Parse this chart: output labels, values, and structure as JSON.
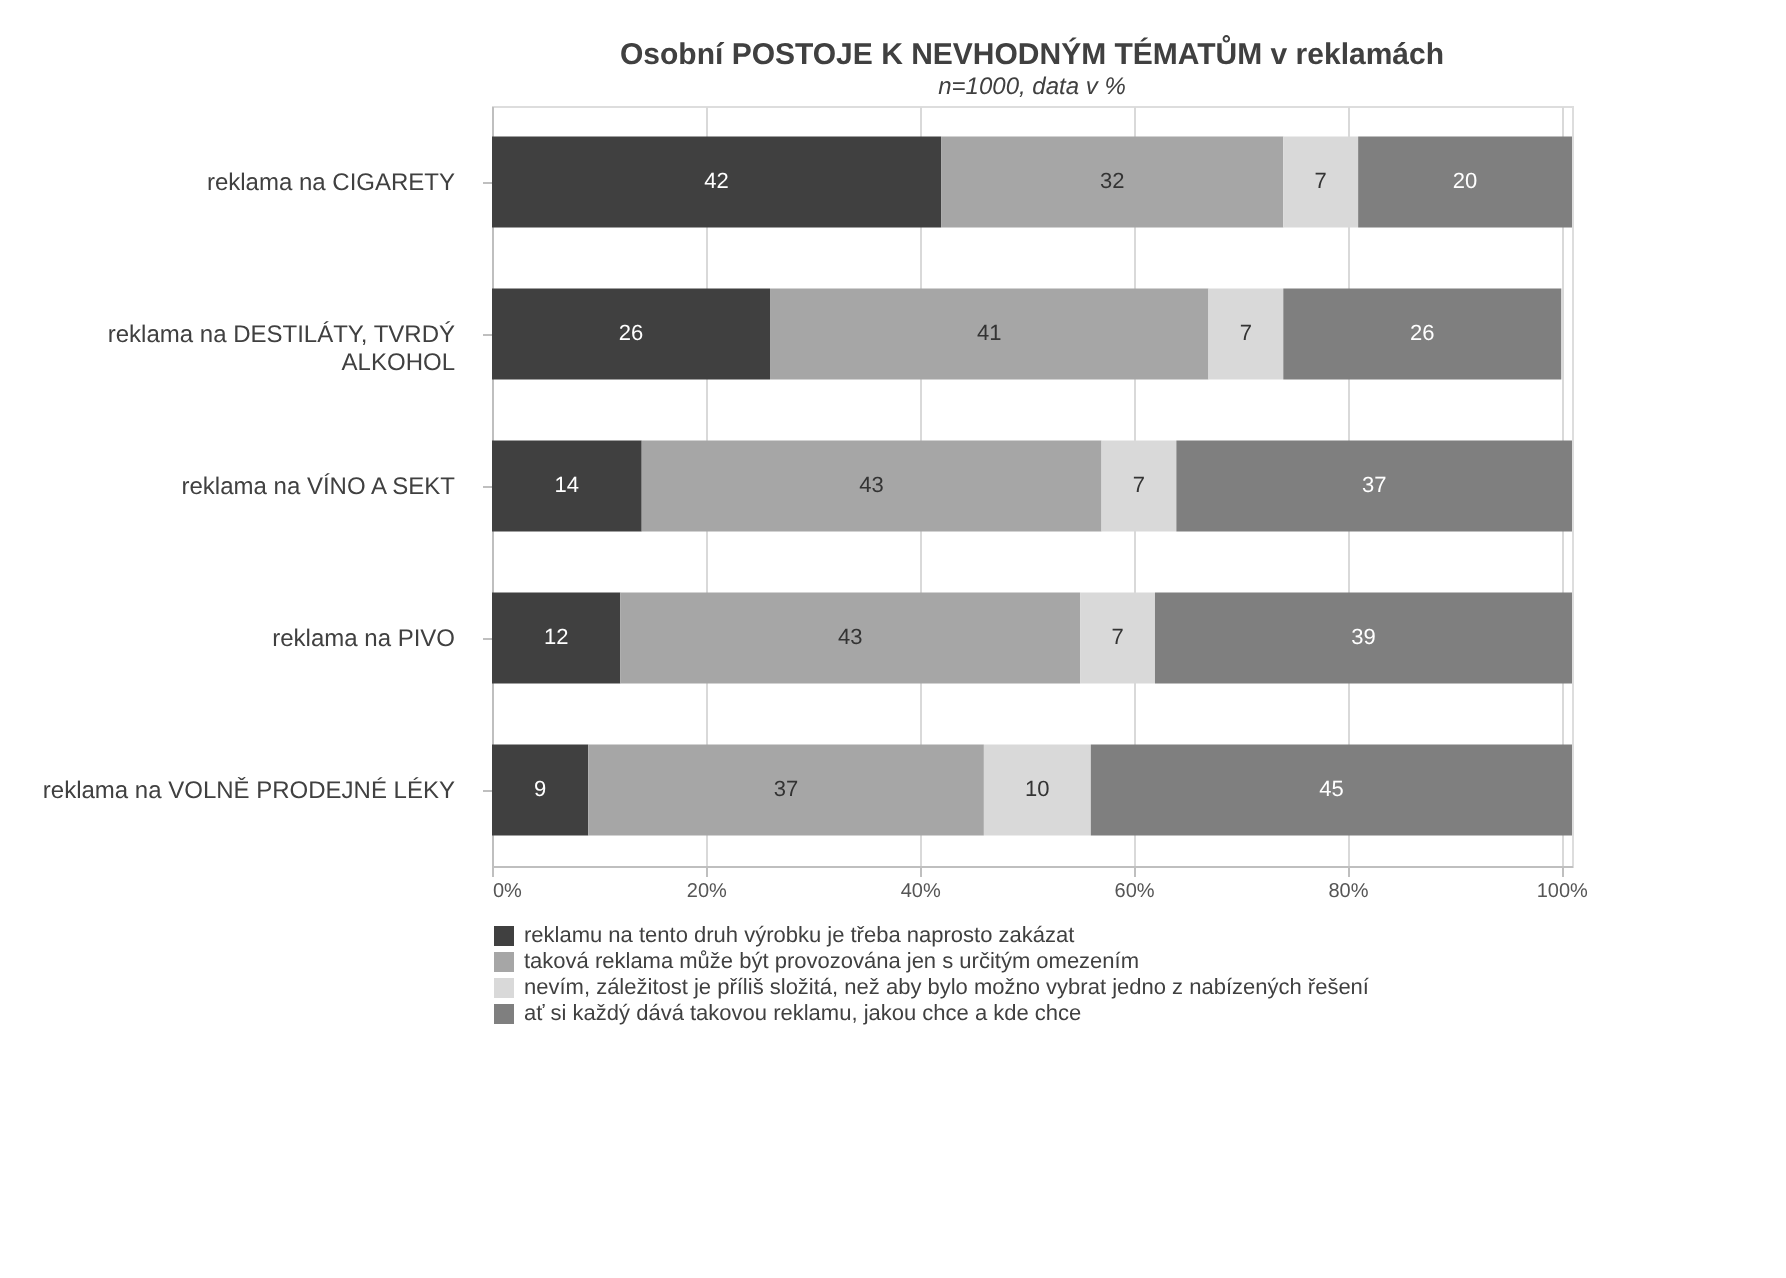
{
  "chart_data": {
    "type": "bar",
    "orientation": "horizontal",
    "stacked": true,
    "title": "Osobní POSTOJE K NEVHODNÝM TÉMATŮM v reklamách",
    "subtitle": "n=1000, data v %",
    "categories": [
      "reklama na CIGARETY",
      "reklama na DESTILÁTY, TVRDÝ\nALKOHOL",
      "reklama na VÍNO A SEKT",
      "reklama na PIVO",
      "reklama na VOLNĚ PRODEJNÉ LÉKY"
    ],
    "series": [
      {
        "name": "reklamu na tento druh výrobku je třeba naprosto zakázat",
        "color": "#404040",
        "values": [
          42,
          26,
          14,
          12,
          9
        ]
      },
      {
        "name": "taková reklama může být provozována jen s určitým omezením",
        "color": "#a6a6a6",
        "values": [
          32,
          41,
          43,
          43,
          37
        ]
      },
      {
        "name": "nevím, záležitost je příliš složitá, než aby bylo možno vybrat jedno z nabízených řešení",
        "color": "#d9d9d9",
        "values": [
          7,
          7,
          7,
          7,
          10
        ]
      },
      {
        "name": "ať si každý dává takovou reklamu, jakou chce a kde chce",
        "color": "#7f7f7f",
        "values": [
          20,
          26,
          37,
          39,
          45
        ]
      }
    ],
    "xlim": [
      0,
      101
    ],
    "xticks": [
      {
        "value": 0,
        "label": "0%"
      },
      {
        "value": 20,
        "label": "20%"
      },
      {
        "value": 40,
        "label": "40%"
      },
      {
        "value": 60,
        "label": "60%"
      },
      {
        "value": 80,
        "label": "80%"
      },
      {
        "value": 100,
        "label": "100%"
      }
    ],
    "grid": "x",
    "legend": "bottom",
    "data_labels": true
  }
}
